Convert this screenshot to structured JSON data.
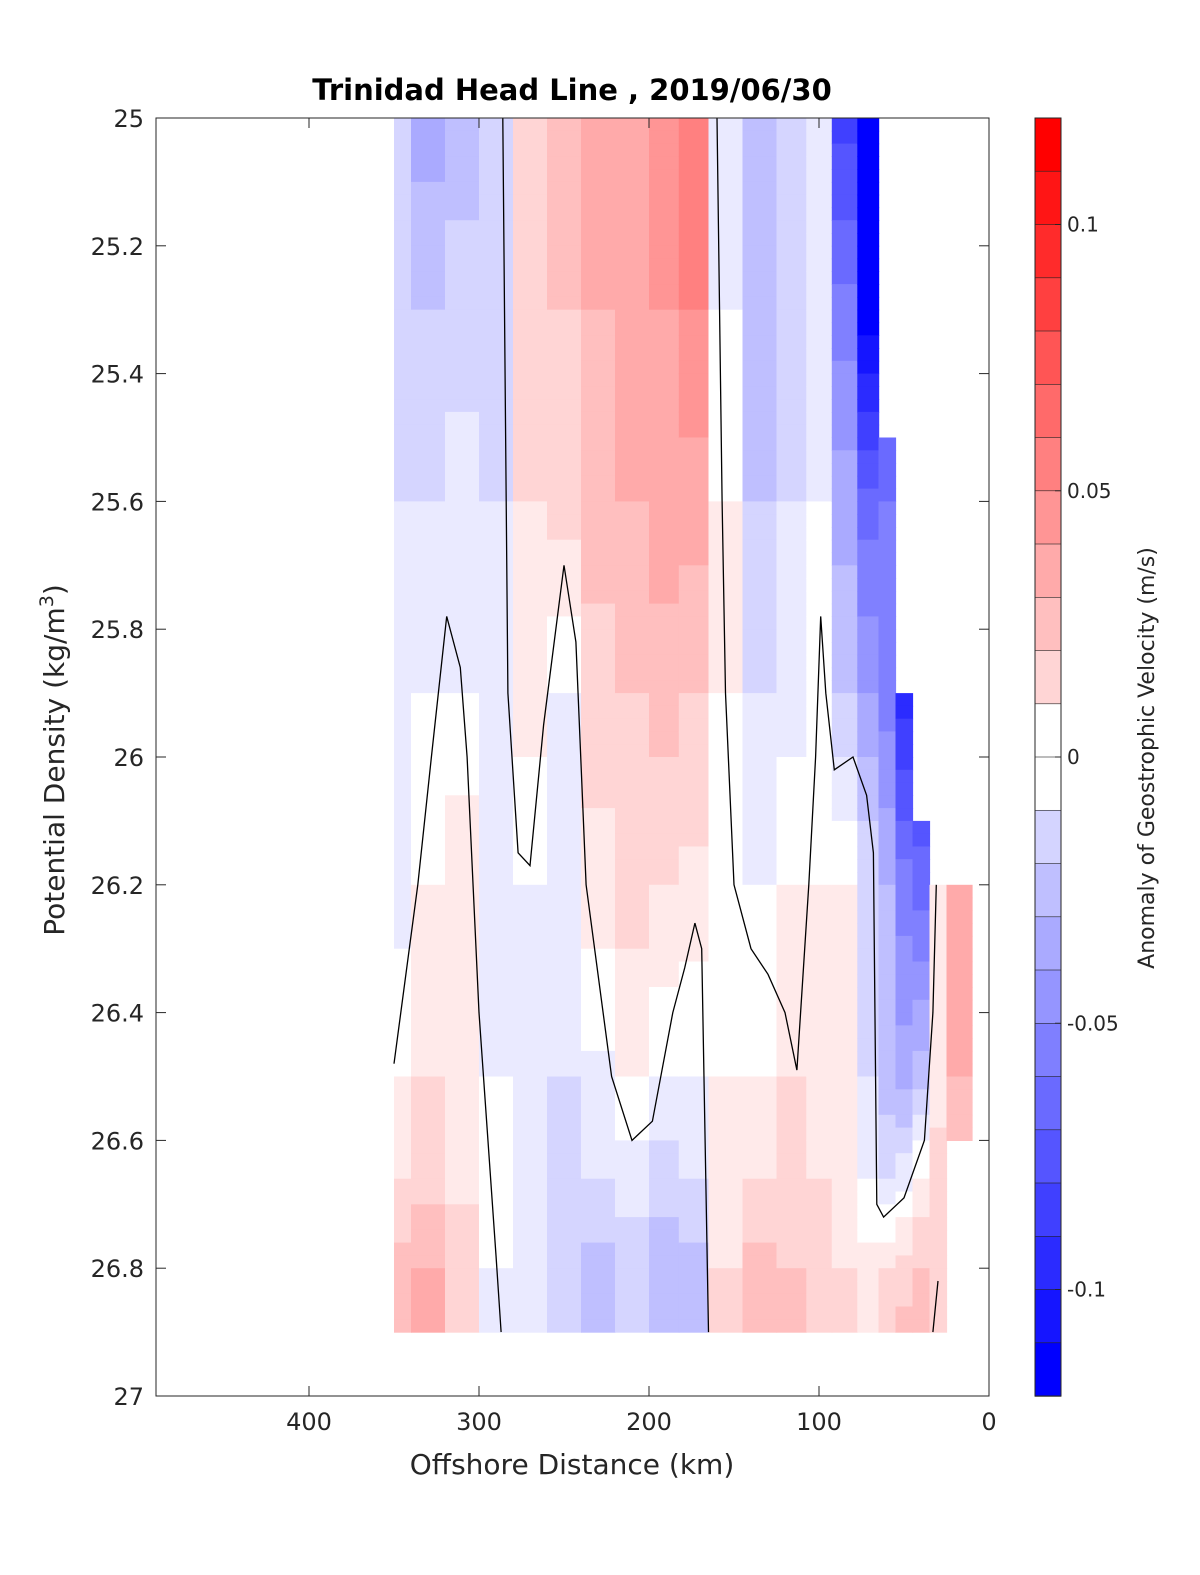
{
  "chart_data": {
    "type": "heatmap",
    "subtype": "filled-contour",
    "title": "Trinidad Head Line , 2019/06/30",
    "xlabel": "Offshore Distance (km)",
    "ylabel": "Potential Density (kg/m3)",
    "ylabel_main": "Potential Density (kg/m",
    "ylabel_sup": "3",
    "ylabel_close": ")",
    "colorbar_label": "Anomaly of Geostrophic Velocity (m/s)",
    "xlim": [
      490,
      0
    ],
    "x_reversed": true,
    "ylim": [
      25,
      27
    ],
    "y_reversed": true,
    "x_ticks": [
      400,
      300,
      200,
      100,
      0
    ],
    "y_ticks": [
      25,
      25.2,
      25.4,
      25.6,
      25.8,
      26,
      26.2,
      26.4,
      26.6,
      26.8,
      27
    ],
    "y_tick_labels": [
      "25",
      "25.2",
      "25.4",
      "25.6",
      "25.8",
      "26",
      "26.2",
      "26.4",
      "26.6",
      "26.8",
      "27"
    ],
    "colorbar_range": [
      -0.12,
      0.12
    ],
    "colorbar_step": 0.01,
    "colorbar_ticks": [
      0.1,
      0.05,
      0,
      -0.05,
      -0.1
    ],
    "colorbar_tick_labels": [
      "0.1",
      "0.05",
      "0",
      "-0.05",
      "-0.1"
    ],
    "colormap": {
      "negative_end": "#0000ff",
      "zero": "#ffffff",
      "positive_end": "#ff0000"
    },
    "zero_contour_color": "#000000",
    "columns": [
      {
        "x": 350,
        "y_range": [
          25,
          26.9
        ],
        "values": [
          {
            "y": 25.0,
            "v": -0.02
          },
          {
            "y": 25.3,
            "v": -0.02
          },
          {
            "y": 25.6,
            "v": -0.015
          },
          {
            "y": 25.9,
            "v": -0.01
          },
          {
            "y": 26.2,
            "v": -0.01
          },
          {
            "y": 26.5,
            "v": 0.005
          },
          {
            "y": 26.65,
            "v": 0.015
          },
          {
            "y": 26.8,
            "v": 0.03
          },
          {
            "y": 26.9,
            "v": 0.03
          }
        ]
      },
      {
        "x": 330,
        "y_range": [
          25,
          26.9
        ],
        "values": [
          {
            "y": 25.0,
            "v": -0.04
          },
          {
            "y": 25.3,
            "v": -0.025
          },
          {
            "y": 25.6,
            "v": -0.015
          },
          {
            "y": 25.9,
            "v": -0.005
          },
          {
            "y": 26.2,
            "v": 0.005
          },
          {
            "y": 26.5,
            "v": 0.015
          },
          {
            "y": 26.65,
            "v": 0.02
          },
          {
            "y": 26.8,
            "v": 0.035
          },
          {
            "y": 26.9,
            "v": 0.04
          }
        ]
      },
      {
        "x": 310,
        "y_range": [
          25,
          26.9
        ],
        "values": [
          {
            "y": 25.0,
            "v": -0.03
          },
          {
            "y": 25.3,
            "v": -0.02
          },
          {
            "y": 25.6,
            "v": -0.01
          },
          {
            "y": 25.9,
            "v": -0.005
          },
          {
            "y": 26.2,
            "v": 0.015
          },
          {
            "y": 26.5,
            "v": 0.012
          },
          {
            "y": 26.65,
            "v": 0.012
          },
          {
            "y": 26.8,
            "v": 0.02
          },
          {
            "y": 26.9,
            "v": 0.025
          }
        ]
      },
      {
        "x": 290,
        "y_range": [
          25,
          26.9
        ],
        "values": [
          {
            "y": 25.0,
            "v": -0.02
          },
          {
            "y": 25.3,
            "v": -0.02
          },
          {
            "y": 25.6,
            "v": -0.015
          },
          {
            "y": 25.9,
            "v": -0.01
          },
          {
            "y": 26.2,
            "v": -0.008
          },
          {
            "y": 26.5,
            "v": -0.005
          },
          {
            "y": 26.65,
            "v": -0.003
          },
          {
            "y": 26.8,
            "v": -0.005
          },
          {
            "y": 26.9,
            "v": -0.005
          }
        ]
      },
      {
        "x": 270,
        "y_range": [
          25,
          26.9
        ],
        "values": [
          {
            "y": 25.0,
            "v": 0.025
          },
          {
            "y": 25.3,
            "v": 0.02
          },
          {
            "y": 25.6,
            "v": 0.015
          },
          {
            "y": 25.9,
            "v": 0.01
          },
          {
            "y": 26.2,
            "v": -0.005
          },
          {
            "y": 26.5,
            "v": -0.012
          },
          {
            "y": 26.65,
            "v": -0.015
          },
          {
            "y": 26.8,
            "v": -0.012
          },
          {
            "y": 26.9,
            "v": -0.01
          }
        ]
      },
      {
        "x": 250,
        "y_range": [
          25,
          26.9
        ],
        "values": [
          {
            "y": 25.0,
            "v": 0.03
          },
          {
            "y": 25.3,
            "v": 0.025
          },
          {
            "y": 25.6,
            "v": 0.02
          },
          {
            "y": 25.9,
            "v": -0.005
          },
          {
            "y": 26.2,
            "v": -0.005
          },
          {
            "y": 26.5,
            "v": -0.015
          },
          {
            "y": 26.65,
            "v": -0.02
          },
          {
            "y": 26.8,
            "v": -0.025
          },
          {
            "y": 26.9,
            "v": -0.02
          }
        ]
      },
      {
        "x": 230,
        "y_range": [
          25,
          26.9
        ],
        "values": [
          {
            "y": 25.0,
            "v": 0.04
          },
          {
            "y": 25.3,
            "v": 0.035
          },
          {
            "y": 25.6,
            "v": 0.03
          },
          {
            "y": 25.9,
            "v": 0.02
          },
          {
            "y": 26.2,
            "v": 0.012
          },
          {
            "y": 26.5,
            "v": -0.008
          },
          {
            "y": 26.65,
            "v": -0.015
          },
          {
            "y": 26.8,
            "v": -0.03
          },
          {
            "y": 26.9,
            "v": -0.03
          }
        ]
      },
      {
        "x": 210,
        "y_range": [
          25,
          26.9
        ],
        "values": [
          {
            "y": 25.0,
            "v": 0.045
          },
          {
            "y": 25.3,
            "v": 0.04
          },
          {
            "y": 25.6,
            "v": 0.035
          },
          {
            "y": 25.9,
            "v": 0.025
          },
          {
            "y": 26.2,
            "v": 0.02
          },
          {
            "y": 26.5,
            "v": 0.005
          },
          {
            "y": 26.65,
            "v": -0.01
          },
          {
            "y": 26.8,
            "v": -0.02
          },
          {
            "y": 26.9,
            "v": -0.02
          }
        ]
      },
      {
        "x": 190,
        "y_range": [
          25,
          26.9
        ],
        "values": [
          {
            "y": 25.0,
            "v": 0.05
          },
          {
            "y": 25.3,
            "v": 0.045
          },
          {
            "y": 25.6,
            "v": 0.04
          },
          {
            "y": 25.9,
            "v": 0.03
          },
          {
            "y": 26.2,
            "v": 0.015
          },
          {
            "y": 26.5,
            "v": -0.005
          },
          {
            "y": 26.65,
            "v": -0.02
          },
          {
            "y": 26.8,
            "v": -0.03
          },
          {
            "y": 26.9,
            "v": -0.03
          }
        ]
      },
      {
        "x": 175,
        "y_range": [
          25,
          26.9
        ],
        "values": [
          {
            "y": 25.0,
            "v": 0.06
          },
          {
            "y": 25.3,
            "v": 0.055
          },
          {
            "y": 25.6,
            "v": 0.04
          },
          {
            "y": 25.9,
            "v": 0.025
          },
          {
            "y": 26.2,
            "v": 0.012
          },
          {
            "y": 26.5,
            "v": -0.005
          },
          {
            "y": 26.65,
            "v": -0.015
          },
          {
            "y": 26.8,
            "v": -0.03
          },
          {
            "y": 26.9,
            "v": -0.03
          }
        ]
      },
      {
        "x": 155,
        "y_range": [
          25,
          26.9
        ],
        "values": [
          {
            "y": 25.0,
            "v": -0.01
          },
          {
            "y": 25.3,
            "v": -0.005
          },
          {
            "y": 25.6,
            "v": 0.005
          },
          {
            "y": 25.9,
            "v": 0.005
          },
          {
            "y": 26.2,
            "v": 0.003
          },
          {
            "y": 26.5,
            "v": 0.005
          },
          {
            "y": 26.65,
            "v": 0.01
          },
          {
            "y": 26.8,
            "v": 0.015
          },
          {
            "y": 26.9,
            "v": 0.015
          }
        ]
      },
      {
        "x": 135,
        "y_range": [
          25,
          26.9
        ],
        "values": [
          {
            "y": 25.0,
            "v": -0.035
          },
          {
            "y": 25.3,
            "v": -0.03
          },
          {
            "y": 25.6,
            "v": -0.025
          },
          {
            "y": 25.9,
            "v": -0.015
          },
          {
            "y": 26.2,
            "v": -0.005
          },
          {
            "y": 26.5,
            "v": 0.005
          },
          {
            "y": 26.65,
            "v": 0.015
          },
          {
            "y": 26.8,
            "v": 0.03
          },
          {
            "y": 26.9,
            "v": 0.035
          }
        ]
      },
      {
        "x": 115,
        "y_range": [
          25,
          26.9
        ],
        "values": [
          {
            "y": 25.0,
            "v": -0.025
          },
          {
            "y": 25.3,
            "v": -0.02
          },
          {
            "y": 25.6,
            "v": -0.015
          },
          {
            "y": 25.9,
            "v": -0.01
          },
          {
            "y": 26.2,
            "v": 0.005
          },
          {
            "y": 26.5,
            "v": 0.015
          },
          {
            "y": 26.65,
            "v": 0.02
          },
          {
            "y": 26.8,
            "v": 0.025
          },
          {
            "y": 26.9,
            "v": 0.03
          }
        ]
      },
      {
        "x": 100,
        "y_range": [
          25,
          26.9
        ],
        "values": [
          {
            "y": 25.0,
            "v": -0.005
          },
          {
            "y": 25.3,
            "v": -0.005
          },
          {
            "y": 25.6,
            "v": -0.005
          },
          {
            "y": 25.9,
            "v": 0.003
          },
          {
            "y": 26.2,
            "v": 0.005
          },
          {
            "y": 26.5,
            "v": 0.012
          },
          {
            "y": 26.65,
            "v": 0.015
          },
          {
            "y": 26.8,
            "v": 0.02
          },
          {
            "y": 26.9,
            "v": 0.02
          }
        ]
      },
      {
        "x": 85,
        "y_range": [
          25,
          26.9
        ],
        "values": [
          {
            "y": 25.0,
            "v": -0.09
          },
          {
            "y": 25.3,
            "v": -0.06
          },
          {
            "y": 25.6,
            "v": -0.04
          },
          {
            "y": 25.9,
            "v": -0.025
          },
          {
            "y": 26.2,
            "v": 0.005
          },
          {
            "y": 26.5,
            "v": 0.015
          },
          {
            "y": 26.65,
            "v": 0.012
          },
          {
            "y": 26.8,
            "v": 0.015
          },
          {
            "y": 26.9,
            "v": 0.015
          }
        ]
      },
      {
        "x": 70,
        "y_range": [
          25,
          26.9
        ],
        "values": [
          {
            "y": 25.0,
            "v": -0.12
          },
          {
            "y": 25.3,
            "v": -0.12
          },
          {
            "y": 25.6,
            "v": -0.07
          },
          {
            "y": 25.9,
            "v": -0.045
          },
          {
            "y": 26.2,
            "v": -0.015
          },
          {
            "y": 26.5,
            "v": -0.015
          },
          {
            "y": 26.65,
            "v": -0.005
          },
          {
            "y": 26.8,
            "v": 0.01
          },
          {
            "y": 26.9,
            "v": 0.015
          }
        ]
      },
      {
        "x": 60,
        "y_range": [
          25.5,
          26.9
        ],
        "values": [
          {
            "y": 25.5,
            "v": -0.07
          },
          {
            "y": 25.6,
            "v": -0.065
          },
          {
            "y": 25.9,
            "v": -0.06
          },
          {
            "y": 26.2,
            "v": -0.035
          },
          {
            "y": 26.5,
            "v": -0.03
          },
          {
            "y": 26.65,
            "v": -0.015
          },
          {
            "y": 26.8,
            "v": 0.015
          },
          {
            "y": 26.9,
            "v": 0.02
          }
        ]
      },
      {
        "x": 50,
        "y_range": [
          25.9,
          26.9
        ],
        "values": [
          {
            "y": 25.9,
            "v": -0.1
          },
          {
            "y": 26.1,
            "v": -0.075
          },
          {
            "y": 26.2,
            "v": -0.06
          },
          {
            "y": 26.5,
            "v": -0.04
          },
          {
            "y": 26.65,
            "v": -0.01
          },
          {
            "y": 26.8,
            "v": 0.02
          },
          {
            "y": 26.9,
            "v": 0.03
          }
        ]
      },
      {
        "x": 40,
        "y_range": [
          26.1,
          26.9
        ],
        "values": [
          {
            "y": 26.1,
            "v": -0.08
          },
          {
            "y": 26.2,
            "v": -0.07
          },
          {
            "y": 26.5,
            "v": -0.03
          },
          {
            "y": 26.65,
            "v": 0.005
          },
          {
            "y": 26.8,
            "v": 0.025
          },
          {
            "y": 26.9,
            "v": 0.035
          }
        ]
      },
      {
        "x": 30,
        "y_range": [
          26.2,
          26.9
        ],
        "values": [
          {
            "y": 26.2,
            "v": 0.01
          },
          {
            "y": 26.3,
            "v": 0.005
          },
          {
            "y": 26.5,
            "v": 0.01
          },
          {
            "y": 26.65,
            "v": 0.02
          },
          {
            "y": 26.8,
            "v": 0.025
          },
          {
            "y": 26.9,
            "v": 0.02
          }
        ]
      },
      {
        "x": 20,
        "y_range": [
          26.2,
          26.6
        ],
        "values": [
          {
            "y": 26.2,
            "v": 0.035
          },
          {
            "y": 26.3,
            "v": 0.045
          },
          {
            "y": 26.5,
            "v": 0.035
          },
          {
            "y": 26.6,
            "v": 0.03
          }
        ]
      }
    ],
    "zero_contours": [
      [
        [
          286,
          25.0
        ],
        [
          284,
          25.6
        ],
        [
          283,
          25.9
        ],
        [
          277,
          26.15
        ],
        [
          270,
          26.17
        ],
        [
          262,
          25.95
        ],
        [
          250,
          25.7
        ],
        [
          243,
          25.82
        ],
        [
          237,
          26.2
        ],
        [
          222,
          26.5
        ],
        [
          210,
          26.6
        ],
        [
          198,
          26.57
        ],
        [
          186,
          26.4
        ],
        [
          179,
          26.33
        ],
        [
          173,
          26.26
        ],
        [
          169,
          26.3
        ],
        [
          165,
          26.9
        ]
      ],
      [
        [
          160,
          25.0
        ],
        [
          157,
          25.6
        ],
        [
          155,
          25.9
        ],
        [
          150,
          26.2
        ],
        [
          140,
          26.3
        ],
        [
          130,
          26.34
        ],
        [
          120,
          26.4
        ],
        [
          113,
          26.49
        ],
        [
          106,
          26.2
        ],
        [
          102,
          26.0
        ],
        [
          99,
          25.78
        ],
        [
          96,
          25.9
        ],
        [
          91,
          26.02
        ],
        [
          80,
          26.0
        ],
        [
          72,
          26.06
        ],
        [
          68,
          26.15
        ],
        [
          66,
          26.7
        ],
        [
          62,
          26.72
        ],
        [
          50,
          26.69
        ],
        [
          38,
          26.6
        ],
        [
          33,
          26.4
        ],
        [
          31,
          26.2
        ]
      ],
      [
        [
          350,
          26.48
        ],
        [
          336,
          26.2
        ],
        [
          328,
          26.0
        ],
        [
          319,
          25.78
        ],
        [
          311,
          25.86
        ],
        [
          307,
          26.0
        ],
        [
          300,
          26.4
        ],
        [
          290,
          26.78
        ],
        [
          287,
          26.9
        ]
      ],
      [
        [
          33,
          26.9
        ],
        [
          30,
          26.82
        ]
      ]
    ]
  }
}
